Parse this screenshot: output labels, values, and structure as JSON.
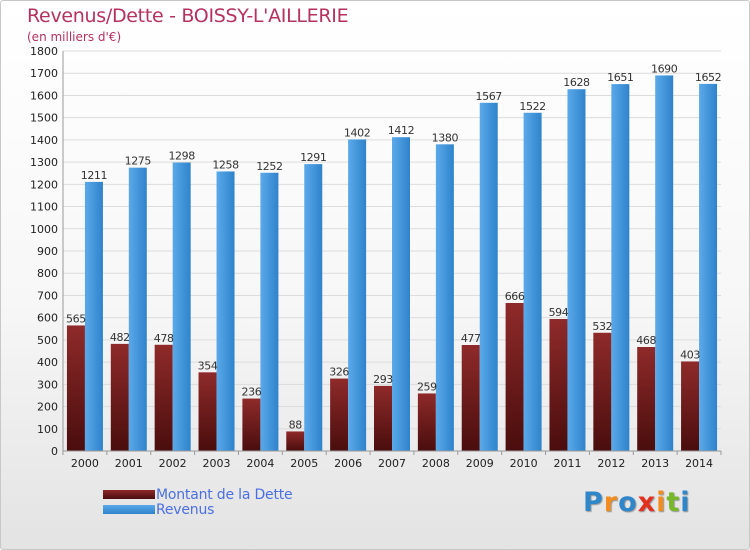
{
  "title": "Revenus/Dette - BOISSY-L'AILLERIE",
  "subtitle": "(en milliers d'€)",
  "legend": {
    "debt_label": "Montant de la Dette",
    "revenue_label": "Revenus"
  },
  "logo": {
    "text": "Proxiti",
    "letter_colors": [
      "#2f86c9",
      "#f28c1e",
      "#2f86c9",
      "#e2301f",
      "#f28c1e",
      "#76b82a",
      "#2f86c9"
    ]
  },
  "colors": {
    "debt": "#7a1e1e",
    "revenue": "#3d93db",
    "title": "#b5315e",
    "legend_text": "#4a6fe0"
  },
  "chart_data": {
    "type": "bar",
    "categories": [
      "2000",
      "2001",
      "2002",
      "2003",
      "2004",
      "2005",
      "2006",
      "2007",
      "2008",
      "2009",
      "2010",
      "2011",
      "2012",
      "2013",
      "2014"
    ],
    "series": [
      {
        "name": "Montant de la Dette",
        "values": [
          565,
          482,
          478,
          354,
          236,
          88,
          326,
          293,
          259,
          477,
          666,
          594,
          532,
          468,
          403
        ]
      },
      {
        "name": "Revenus",
        "values": [
          1211,
          1275,
          1298,
          1258,
          1252,
          1291,
          1402,
          1412,
          1380,
          1567,
          1522,
          1628,
          1651,
          1690,
          1652
        ]
      }
    ],
    "title": "Revenus/Dette - BOISSY-L'AILLERIE",
    "subtitle": "(en milliers d'€)",
    "xlabel": "",
    "ylabel": "",
    "ylim": [
      0,
      1800
    ],
    "yticks": [
      0,
      100,
      200,
      300,
      400,
      500,
      600,
      700,
      800,
      900,
      1000,
      1100,
      1200,
      1300,
      1400,
      1500,
      1600,
      1700,
      1800
    ],
    "grid": true,
    "legend_position": "bottom-left"
  }
}
